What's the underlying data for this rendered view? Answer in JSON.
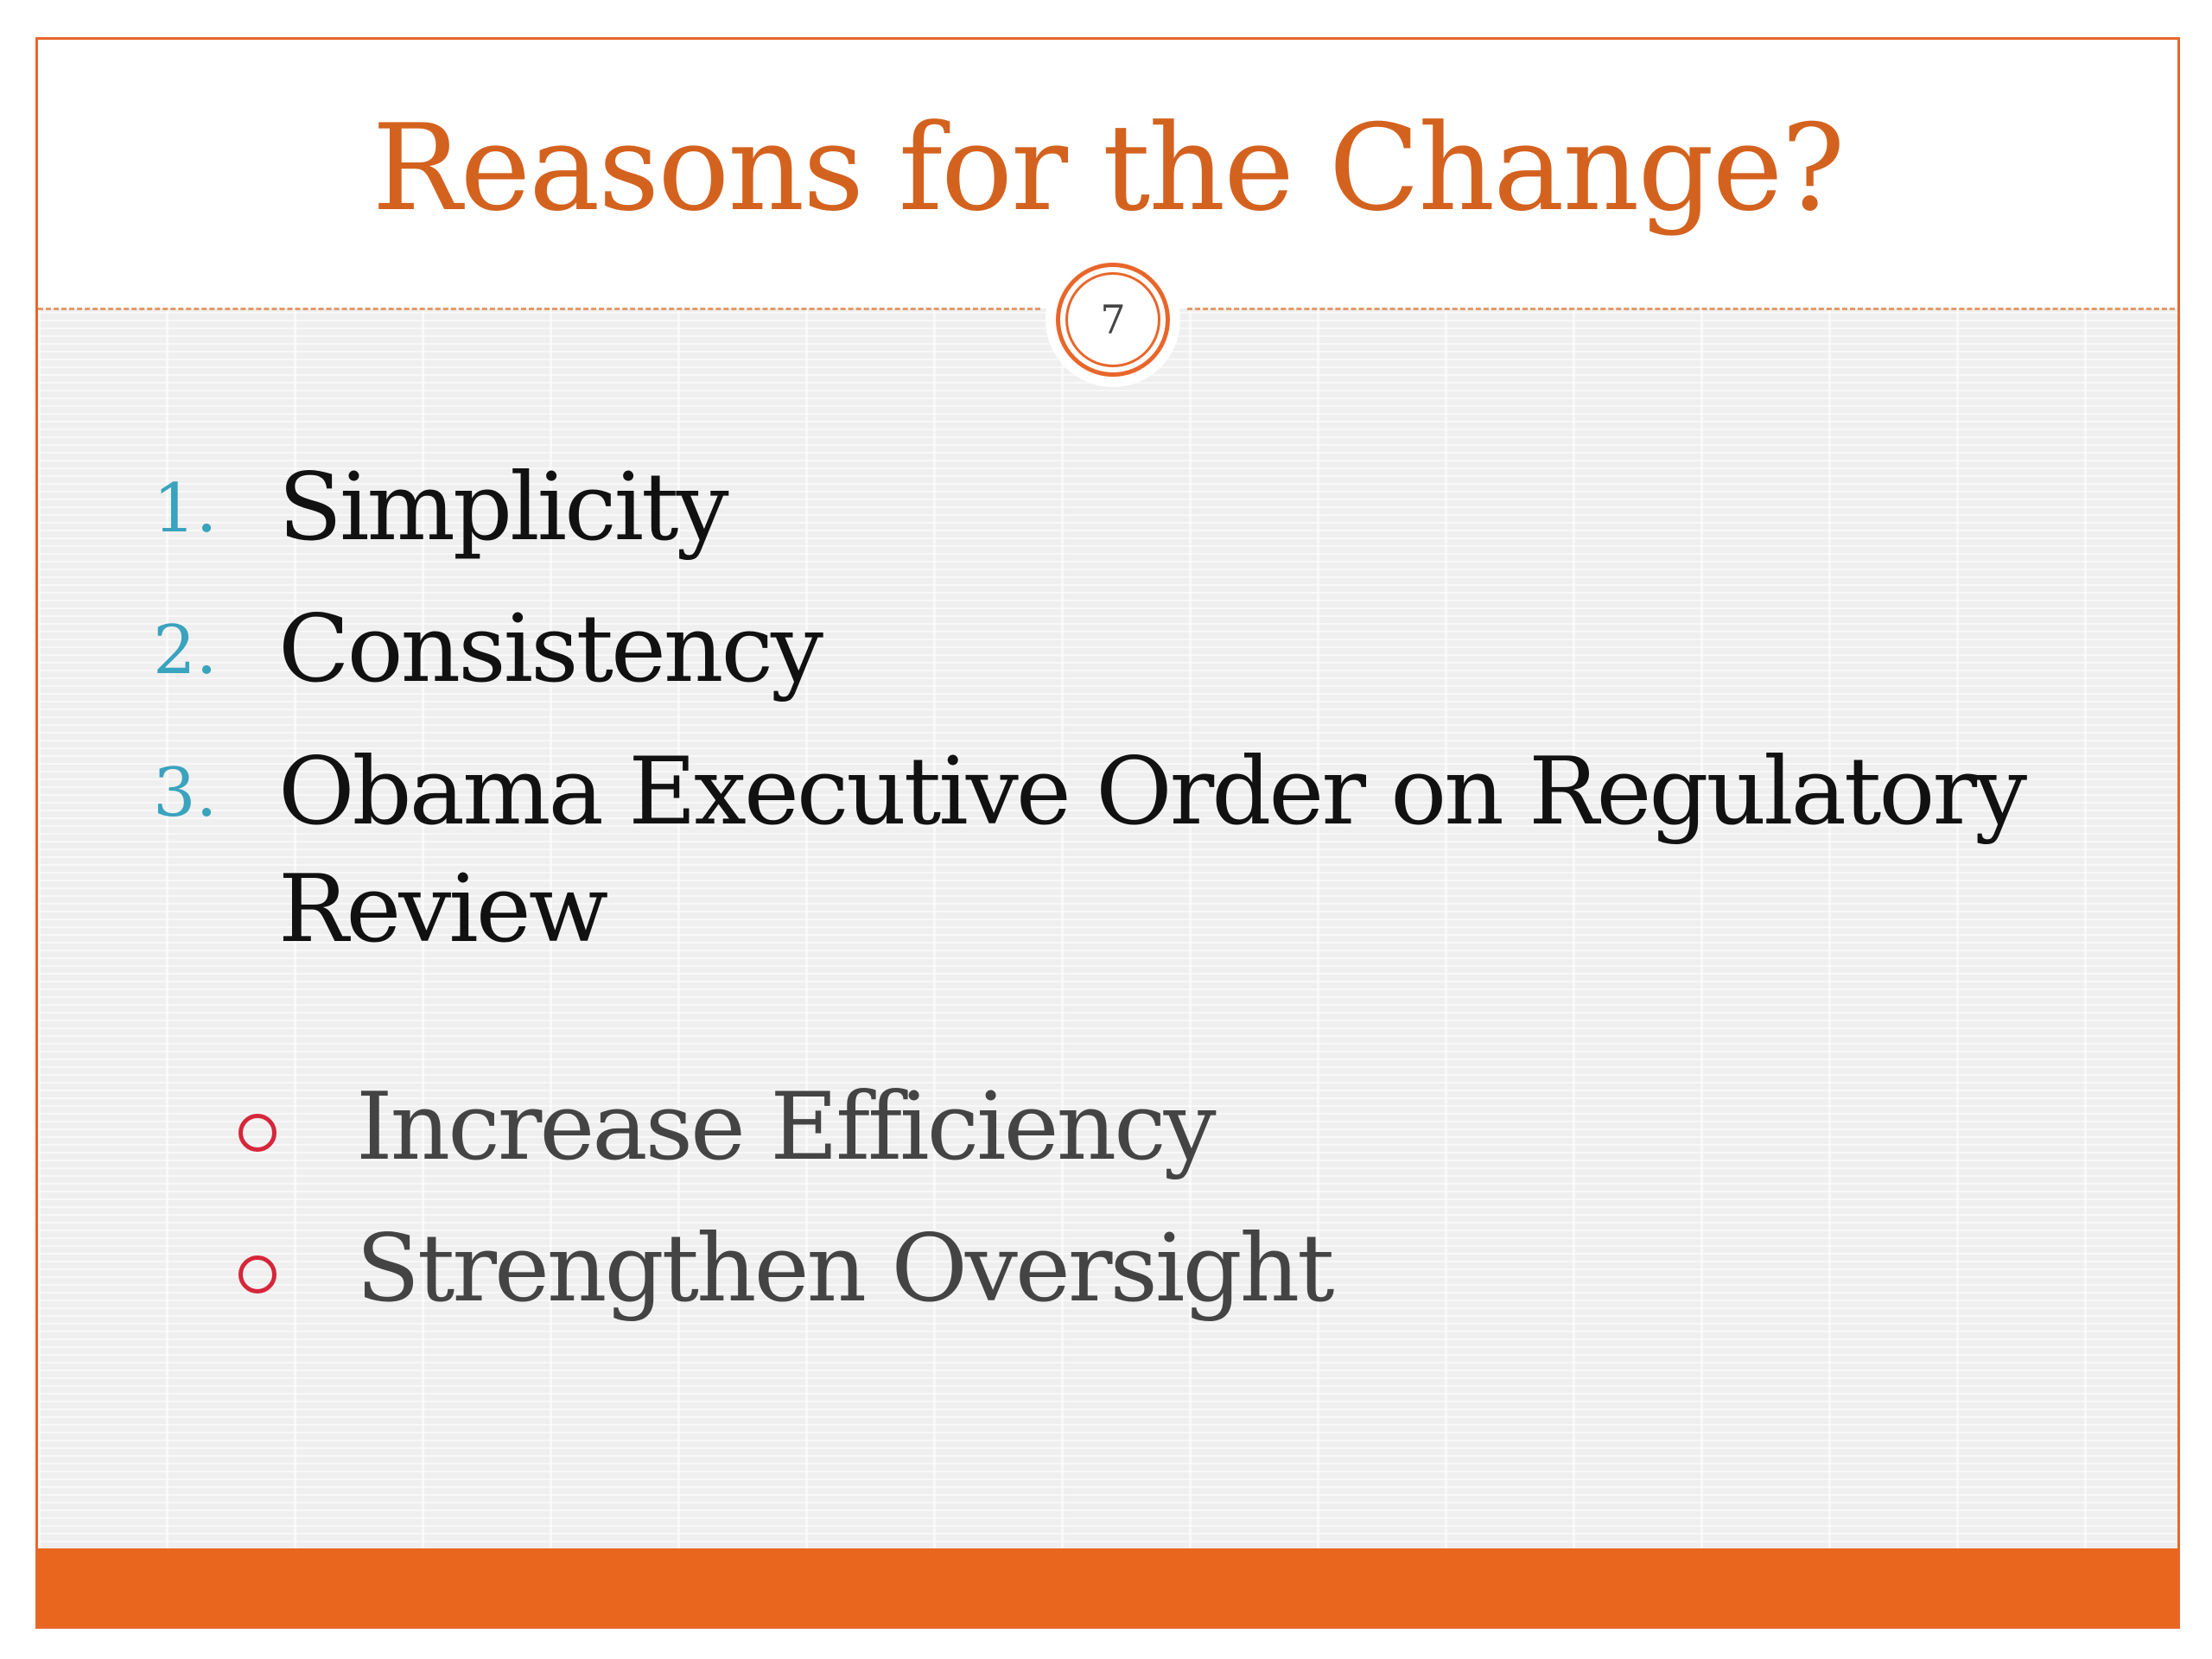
{
  "slide": {
    "title": "Reasons for the Change?",
    "slide_number": "7",
    "accent_color": "#e8662a",
    "number_color": "#3aa3bd",
    "sub_bullet_color": "#d6263a",
    "items": [
      {
        "marker": "1.",
        "text": "Simplicity"
      },
      {
        "marker": "2.",
        "text": "Consistency"
      },
      {
        "marker": "3.",
        "text_line1": "Obama Executive Order on Regulatory",
        "text_line2": "Review"
      }
    ],
    "sub_items": [
      {
        "text": "Increase Efficiency"
      },
      {
        "text": "Strengthen Oversight"
      }
    ]
  }
}
